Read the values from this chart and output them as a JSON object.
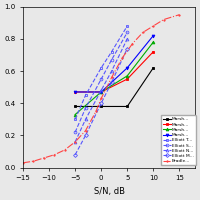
{
  "title": "",
  "xlabel": "S/N, dB",
  "ylabel": "",
  "xlim": [
    -15,
    18
  ],
  "ylim": [
    0,
    1
  ],
  "yticks": [
    0.0,
    0.2,
    0.4,
    0.6,
    0.8,
    1.0
  ],
  "xticks": [
    -15,
    -10,
    -5,
    0,
    5,
    10,
    15
  ],
  "series": {
    "Marshall_black": {
      "x": [
        -5,
        0,
        5,
        10
      ],
      "y": [
        0.38,
        0.38,
        0.38,
        0.62
      ],
      "color": "#000000",
      "marker": "s",
      "linestyle": "-",
      "markerface": true,
      "label": "Marsh..."
    },
    "Marshall_red": {
      "x": [
        -5,
        0,
        5,
        10
      ],
      "y": [
        0.47,
        0.47,
        0.55,
        0.72
      ],
      "color": "#ff0000",
      "marker": "s",
      "linestyle": "-",
      "markerface": true,
      "label": "Marsh..."
    },
    "Marshall_green": {
      "x": [
        -5,
        0,
        5,
        10
      ],
      "y": [
        0.33,
        0.47,
        0.57,
        0.78
      ],
      "color": "#00aa00",
      "marker": "^",
      "linestyle": "-",
      "markerface": true,
      "label": "Marsh..."
    },
    "Marshall_blue": {
      "x": [
        -5,
        0,
        5,
        10
      ],
      "y": [
        0.47,
        0.47,
        0.62,
        0.82
      ],
      "color": "#0000ff",
      "marker": "v",
      "linestyle": "-",
      "markerface": true,
      "label": "Marsh..."
    },
    "Elliott_blue1": {
      "x": [
        -5,
        -3,
        0,
        2,
        5
      ],
      "y": [
        0.3,
        0.45,
        0.62,
        0.72,
        0.88
      ],
      "color": "#5555ff",
      "marker": "s",
      "linestyle": "--",
      "markerface": false,
      "label": "Elliott T..."
    },
    "Elliott_blue2": {
      "x": [
        -5,
        -3,
        0,
        2,
        5
      ],
      "y": [
        0.22,
        0.37,
        0.55,
        0.67,
        0.84
      ],
      "color": "#5555ff",
      "marker": "o",
      "linestyle": "--",
      "markerface": false,
      "label": "Elliott S..."
    },
    "Elliott_blue3": {
      "x": [
        -5,
        -3,
        0,
        2,
        5
      ],
      "y": [
        0.16,
        0.3,
        0.48,
        0.6,
        0.8
      ],
      "color": "#5555ff",
      "marker": "^",
      "linestyle": "--",
      "markerface": false,
      "label": "Elliott N..."
    },
    "Elliott_blue4": {
      "x": [
        -5,
        -3,
        0,
        2,
        5
      ],
      "y": [
        0.08,
        0.2,
        0.4,
        0.53,
        0.74
      ],
      "color": "#5555ff",
      "marker": "D",
      "linestyle": "--",
      "markerface": false,
      "label": "Elliott M..."
    },
    "Bradley": {
      "x": [
        -15,
        -13,
        -11,
        -9,
        -7,
        -5,
        -3,
        -1,
        0,
        2,
        4,
        6,
        8,
        10,
        12,
        15
      ],
      "y": [
        0.03,
        0.04,
        0.06,
        0.08,
        0.11,
        0.16,
        0.23,
        0.35,
        0.43,
        0.56,
        0.68,
        0.77,
        0.84,
        0.88,
        0.92,
        0.95
      ],
      "color": "#ff4444",
      "marker": ".",
      "linestyle": "-.",
      "markerface": true,
      "label": "Bradle..."
    }
  },
  "tick_fontsize": 5,
  "label_fontsize": 6,
  "linewidth": 0.8,
  "markersize": 2.0
}
